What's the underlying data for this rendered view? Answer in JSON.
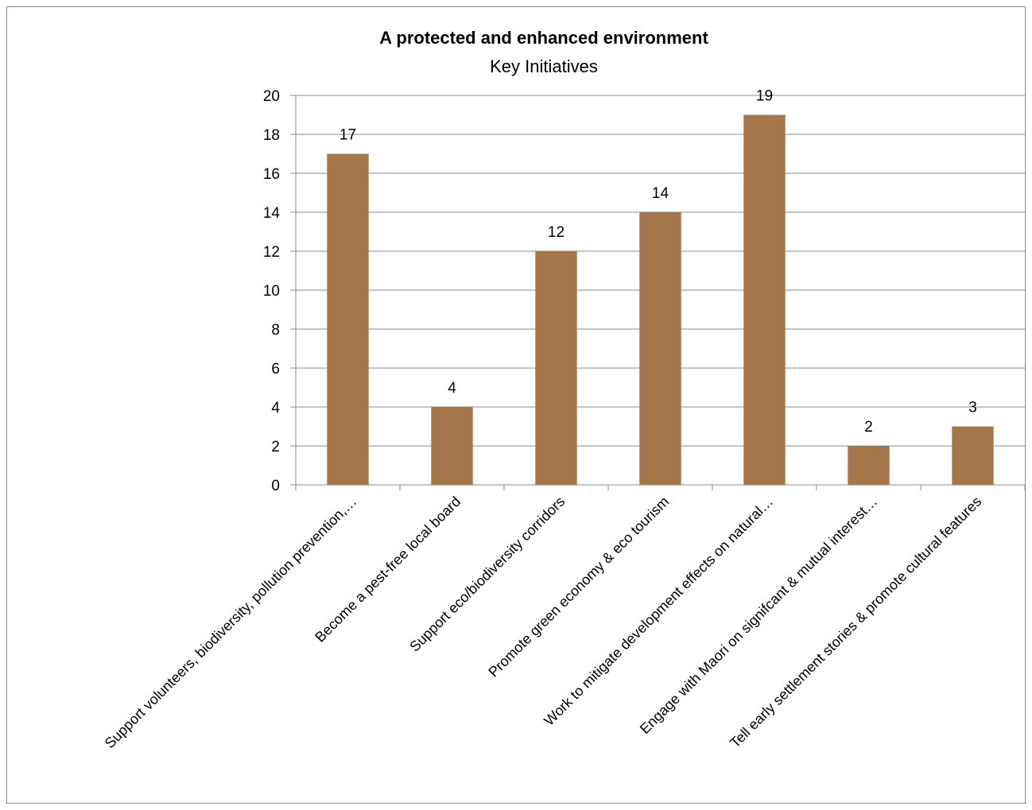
{
  "chart_data": {
    "type": "bar",
    "title": "A protected and enhanced environment",
    "subtitle": "Key Initiatives",
    "xlabel": "",
    "ylabel": "",
    "ylim": [
      0,
      20
    ],
    "yticks": [
      0,
      2,
      4,
      6,
      8,
      10,
      12,
      14,
      16,
      18,
      20
    ],
    "grid": true,
    "legend": "none",
    "bar_color": "#A5764A",
    "categories": [
      "Support volunteers, biodiversity, pollution prevention,…",
      "Become a pest-free local board",
      "Support eco/biodiversity corridors",
      "Promote green economy & eco tourism",
      "Work to mitigate development effects on natural…",
      "Engage with Maori on signifcant & mutual interest…",
      "Tell early settlement stories & promote cultural features"
    ],
    "values": [
      17,
      4,
      12,
      14,
      19,
      2,
      3
    ]
  }
}
